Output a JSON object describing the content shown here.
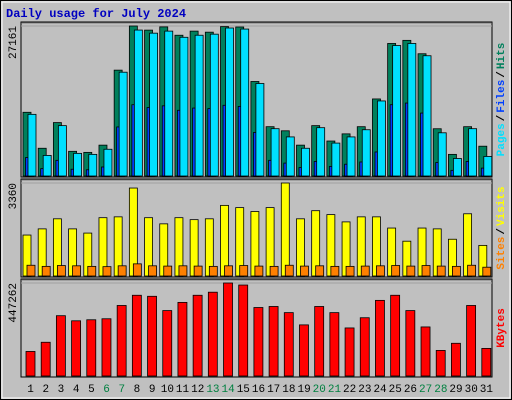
{
  "title": "Daily usage for July 2024",
  "title_color": "#0000c0",
  "chart_data": [
    {
      "type": "bar",
      "ylim": [
        0,
        27161
      ],
      "yticks": [
        27161
      ],
      "legend_separator": "/",
      "series": [
        {
          "name": "Pages",
          "color": "#00e0ff",
          "values": [
            11270,
            3880,
            9240,
            4250,
            4070,
            4990,
            18850,
            26430,
            25870,
            26240,
            25130,
            25500,
            25690,
            26800,
            26610,
            16820,
            8690,
            7210,
            5170,
            8870,
            6100,
            7210,
            8500,
            13680,
            23650,
            24020,
            21810,
            7950,
            3330,
            8690,
            3700
          ]
        },
        {
          "name": "Files",
          "color": "#0040ff",
          "values": [
            3500,
            1500,
            3000,
            1400,
            1300,
            1800,
            9000,
            13000,
            12500,
            12800,
            12000,
            12400,
            12300,
            12900,
            12700,
            8000,
            3000,
            2500,
            1700,
            2800,
            1900,
            2300,
            2700,
            4500,
            13000,
            13300,
            11500,
            2600,
            1200,
            2800,
            1600
          ]
        },
        {
          "name": "Hits",
          "color": "#00805c",
          "values": [
            11640,
            5170,
            9790,
            4620,
            4430,
            5730,
            19220,
            27161,
            26420,
            27000,
            25500,
            26240,
            26050,
            27050,
            26980,
            17180,
            9050,
            8310,
            5730,
            9240,
            6470,
            7760,
            9050,
            14040,
            24020,
            24580,
            22170,
            8680,
            4070,
            9050,
            5540
          ]
        }
      ]
    },
    {
      "type": "bar",
      "ylim": [
        0,
        3360
      ],
      "yticks": [
        3360
      ],
      "legend_separator": "/",
      "series": [
        {
          "name": "Sites",
          "color": "#ff8000",
          "values": [
            420,
            380,
            410,
            400,
            380,
            370,
            400,
            470,
            400,
            390,
            400,
            390,
            380,
            400,
            410,
            390,
            380,
            420,
            390,
            400,
            380,
            380,
            390,
            400,
            410,
            390,
            410,
            390,
            380,
            420,
            350
          ]
        },
        {
          "name": "Visits",
          "color": "#ffff00",
          "values": [
            1500,
            1720,
            2080,
            1720,
            1570,
            2120,
            2150,
            3180,
            2120,
            1900,
            2120,
            2050,
            2080,
            2560,
            2480,
            2340,
            2480,
            3360,
            2080,
            2370,
            2230,
            1970,
            2150,
            2150,
            1750,
            1280,
            1750,
            1720,
            1350,
            2260,
            1130
          ]
        }
      ]
    },
    {
      "type": "bar",
      "ylim": [
        0,
        447262
      ],
      "yticks": [
        447262
      ],
      "categories": [
        "1",
        "2",
        "3",
        "4",
        "5",
        "6",
        "7",
        "8",
        "9",
        "10",
        "11",
        "12",
        "13",
        "14",
        "15",
        "16",
        "17",
        "18",
        "19",
        "20",
        "21",
        "22",
        "23",
        "24",
        "25",
        "26",
        "27",
        "28",
        "29",
        "30",
        "31"
      ],
      "category_colors": [
        "#000000",
        "#000000",
        "#000000",
        "#000000",
        "#000000",
        "#008040",
        "#008040",
        "#000000",
        "#000000",
        "#000000",
        "#000000",
        "#000000",
        "#008040",
        "#008040",
        "#000000",
        "#000000",
        "#000000",
        "#000000",
        "#000000",
        "#008040",
        "#008040",
        "#000000",
        "#000000",
        "#000000",
        "#000000",
        "#000000",
        "#008040",
        "#008040",
        "#000000",
        "#000000",
        "#000000"
      ],
      "series": [
        {
          "name": "KBytes",
          "color": "#ff0000",
          "values": [
            121550,
            165300,
            291700,
            267400,
            272300,
            277100,
            340300,
            388900,
            384000,
            316000,
            355000,
            388900,
            403500,
            447262,
            437600,
            330600,
            335500,
            306300,
            248000,
            335500,
            306300,
            233400,
            282000,
            364600,
            388900,
            316000,
            238200,
            126400,
            160400,
            340300,
            136100
          ]
        }
      ]
    }
  ]
}
